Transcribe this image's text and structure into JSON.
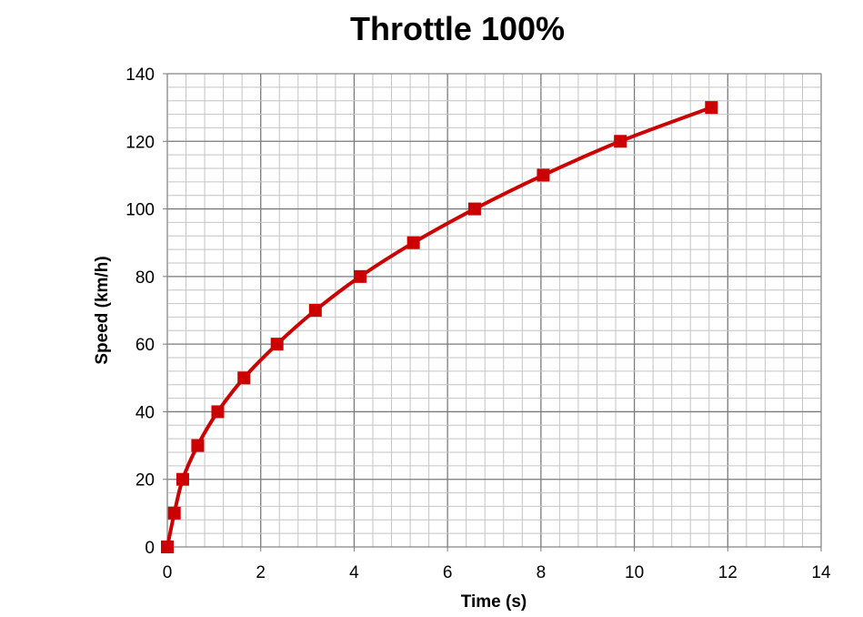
{
  "chart_data": {
    "type": "line",
    "title": "Throttle 100%",
    "xlabel": "Time (s)",
    "ylabel": "Speed (km/h)",
    "xlim": [
      0,
      14
    ],
    "ylim": [
      0,
      140
    ],
    "x_ticks": [
      "0",
      "2",
      "4",
      "6",
      "8",
      "10",
      "12",
      "14"
    ],
    "y_ticks": [
      "0",
      "20",
      "40",
      "60",
      "80",
      "100",
      "120",
      "140"
    ],
    "grid": true,
    "legend": "none",
    "marker": "square",
    "series": [
      {
        "color": "#cc0000",
        "points": [
          {
            "x": 0.0,
            "y": 0
          },
          {
            "x": 0.15,
            "y": 10
          },
          {
            "x": 0.33,
            "y": 20
          },
          {
            "x": 0.65,
            "y": 30
          },
          {
            "x": 1.08,
            "y": 40
          },
          {
            "x": 1.64,
            "y": 50
          },
          {
            "x": 2.35,
            "y": 60
          },
          {
            "x": 3.17,
            "y": 70
          },
          {
            "x": 4.13,
            "y": 80
          },
          {
            "x": 5.27,
            "y": 90
          },
          {
            "x": 6.58,
            "y": 100
          },
          {
            "x": 8.05,
            "y": 110
          },
          {
            "x": 9.7,
            "y": 120
          },
          {
            "x": 11.65,
            "y": 130
          }
        ]
      }
    ]
  }
}
